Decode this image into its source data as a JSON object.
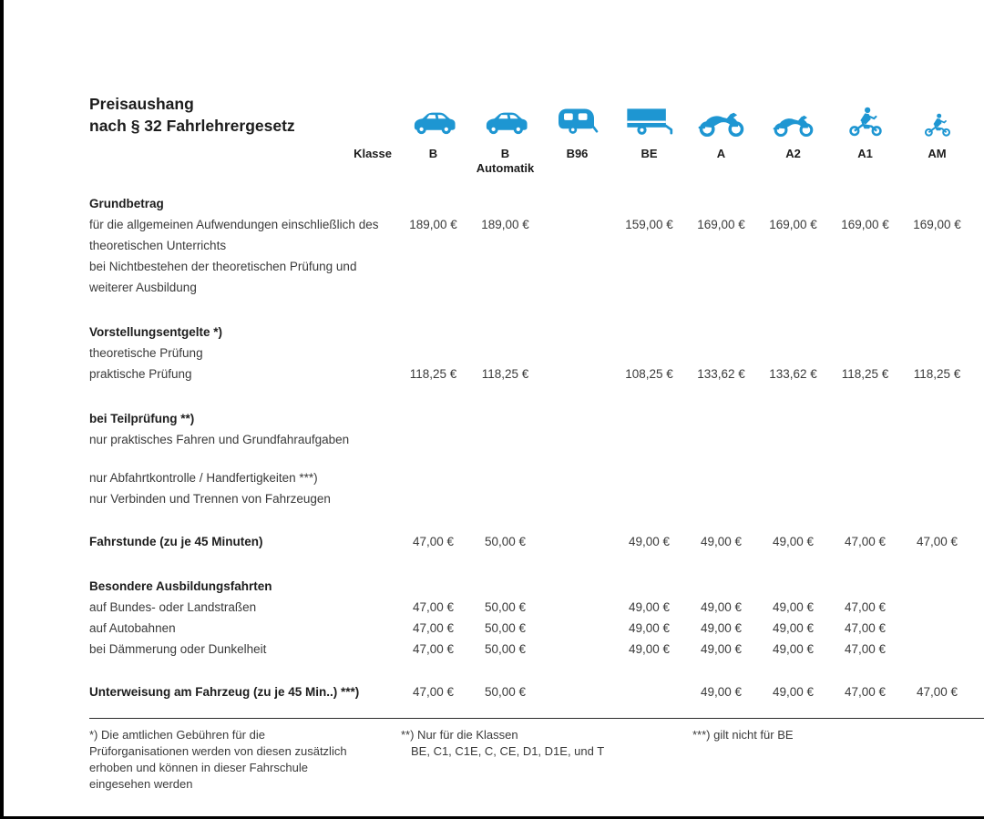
{
  "theme": {
    "accent_blue": "#1E96D2",
    "body_text": "#3a3a3a",
    "heading_text": "#1c1c1c",
    "frame_black": "#000000"
  },
  "header": {
    "title_line1": "Preisaushang",
    "title_line2": "nach § 32 Fahrlehrergesetz",
    "klasse_label": "Klasse",
    "columns": [
      {
        "label": "B",
        "sublabel": "",
        "icon": "car-icon"
      },
      {
        "label": "B",
        "sublabel": "Automatik",
        "icon": "car-icon"
      },
      {
        "label": "B96",
        "sublabel": "",
        "icon": "caravan-icon"
      },
      {
        "label": "BE",
        "sublabel": "",
        "icon": "trailer-icon"
      },
      {
        "label": "A",
        "sublabel": "",
        "icon": "motorcycle-icon"
      },
      {
        "label": "A2",
        "sublabel": "",
        "icon": "motorcycle-icon"
      },
      {
        "label": "A1",
        "sublabel": "",
        "icon": "motorcycle-rider-icon"
      },
      {
        "label": "AM",
        "sublabel": "",
        "icon": "moped-rider-icon"
      }
    ]
  },
  "table": {
    "rows": [
      {
        "type": "section",
        "label": "Grundbetrag",
        "values": [
          "",
          "",
          "",
          "",
          "",
          "",
          "",
          ""
        ]
      },
      {
        "type": "item",
        "label": "für die allgemeinen Aufwendungen einschließlich des theoretischen Unterrichts",
        "values": [
          "189,00 €",
          "189,00 €",
          "",
          "159,00 €",
          "169,00 €",
          "169,00 €",
          "169,00 €",
          "169,00 €"
        ]
      },
      {
        "type": "item",
        "label": "bei Nichtbestehen der theoretischen Prüfung und weiterer Ausbildung",
        "values": [
          "",
          "",
          "",
          "",
          "",
          "",
          "",
          ""
        ]
      },
      {
        "type": "section",
        "label": "Vorstellungsentgelte *)",
        "values": [
          "",
          "",
          "",
          "",
          "",
          "",
          "",
          ""
        ]
      },
      {
        "type": "item",
        "label": "theoretische Prüfung",
        "values": [
          "",
          "",
          "",
          "",
          "",
          "",
          "",
          ""
        ]
      },
      {
        "type": "item",
        "label": "praktische Prüfung",
        "values": [
          "118,25 €",
          "118,25 €",
          "",
          "108,25 €",
          "133,62 €",
          "133,62 €",
          "118,25 €",
          "118,25 €"
        ]
      },
      {
        "type": "section",
        "label": "bei Teilprüfung **)",
        "values": [
          "",
          "",
          "",
          "",
          "",
          "",
          "",
          ""
        ]
      },
      {
        "type": "item",
        "label": "nur praktisches Fahren und Grundfahraufgaben",
        "values": [
          "",
          "",
          "",
          "",
          "",
          "",
          "",
          ""
        ]
      },
      {
        "type": "gap",
        "label": "",
        "values": [
          "",
          "",
          "",
          "",
          "",
          "",
          "",
          ""
        ]
      },
      {
        "type": "item",
        "label": "nur Abfahrtkontrolle / Handfertigkeiten ***)",
        "values": [
          "",
          "",
          "",
          "",
          "",
          "",
          "",
          ""
        ]
      },
      {
        "type": "item",
        "label": "nur Verbinden und Trennen von Fahrzeugen",
        "values": [
          "",
          "",
          "",
          "",
          "",
          "",
          "",
          ""
        ]
      },
      {
        "type": "bold",
        "label": "Fahrstunde (zu je 45 Minuten)",
        "values": [
          "47,00 €",
          "50,00 €",
          "",
          "49,00 €",
          "49,00 €",
          "49,00 €",
          "47,00 €",
          "47,00 €"
        ]
      },
      {
        "type": "section",
        "label": "Besondere Ausbildungsfahrten",
        "values": [
          "",
          "",
          "",
          "",
          "",
          "",
          "",
          ""
        ]
      },
      {
        "type": "item",
        "label": "auf Bundes- oder Landstraßen",
        "values": [
          "47,00 €",
          "50,00 €",
          "",
          "49,00 €",
          "49,00 €",
          "49,00 €",
          "47,00 €",
          ""
        ]
      },
      {
        "type": "item",
        "label": "auf Autobahnen",
        "values": [
          "47,00 €",
          "50,00 €",
          "",
          "49,00 €",
          "49,00 €",
          "49,00 €",
          "47,00 €",
          ""
        ]
      },
      {
        "type": "item",
        "label": "bei Dämmerung oder Dunkelheit",
        "values": [
          "47,00 €",
          "50,00 €",
          "",
          "49,00 €",
          "49,00 €",
          "49,00 €",
          "47,00 €",
          ""
        ]
      },
      {
        "type": "bold",
        "label": "Unterweisung am Fahrzeug (zu je 45 Min..) ***)",
        "values": [
          "47,00 €",
          "50,00 €",
          "",
          "",
          "49,00 €",
          "49,00 €",
          "47,00 €",
          "47,00 €"
        ]
      }
    ]
  },
  "footnotes": [
    {
      "lines": [
        "*) Die amtlichen Gebühren für die",
        "Prüforganisationen werden von diesen zusätzlich",
        "erhoben und können in dieser Fahrschule",
        "eingesehen werden"
      ]
    },
    {
      "lines": [
        "**) Nur für die Klassen",
        "BE, C1, C1E, C, CE, D1, D1E, und T"
      ]
    },
    {
      "lines": [
        "***) gilt nicht für BE"
      ]
    }
  ]
}
